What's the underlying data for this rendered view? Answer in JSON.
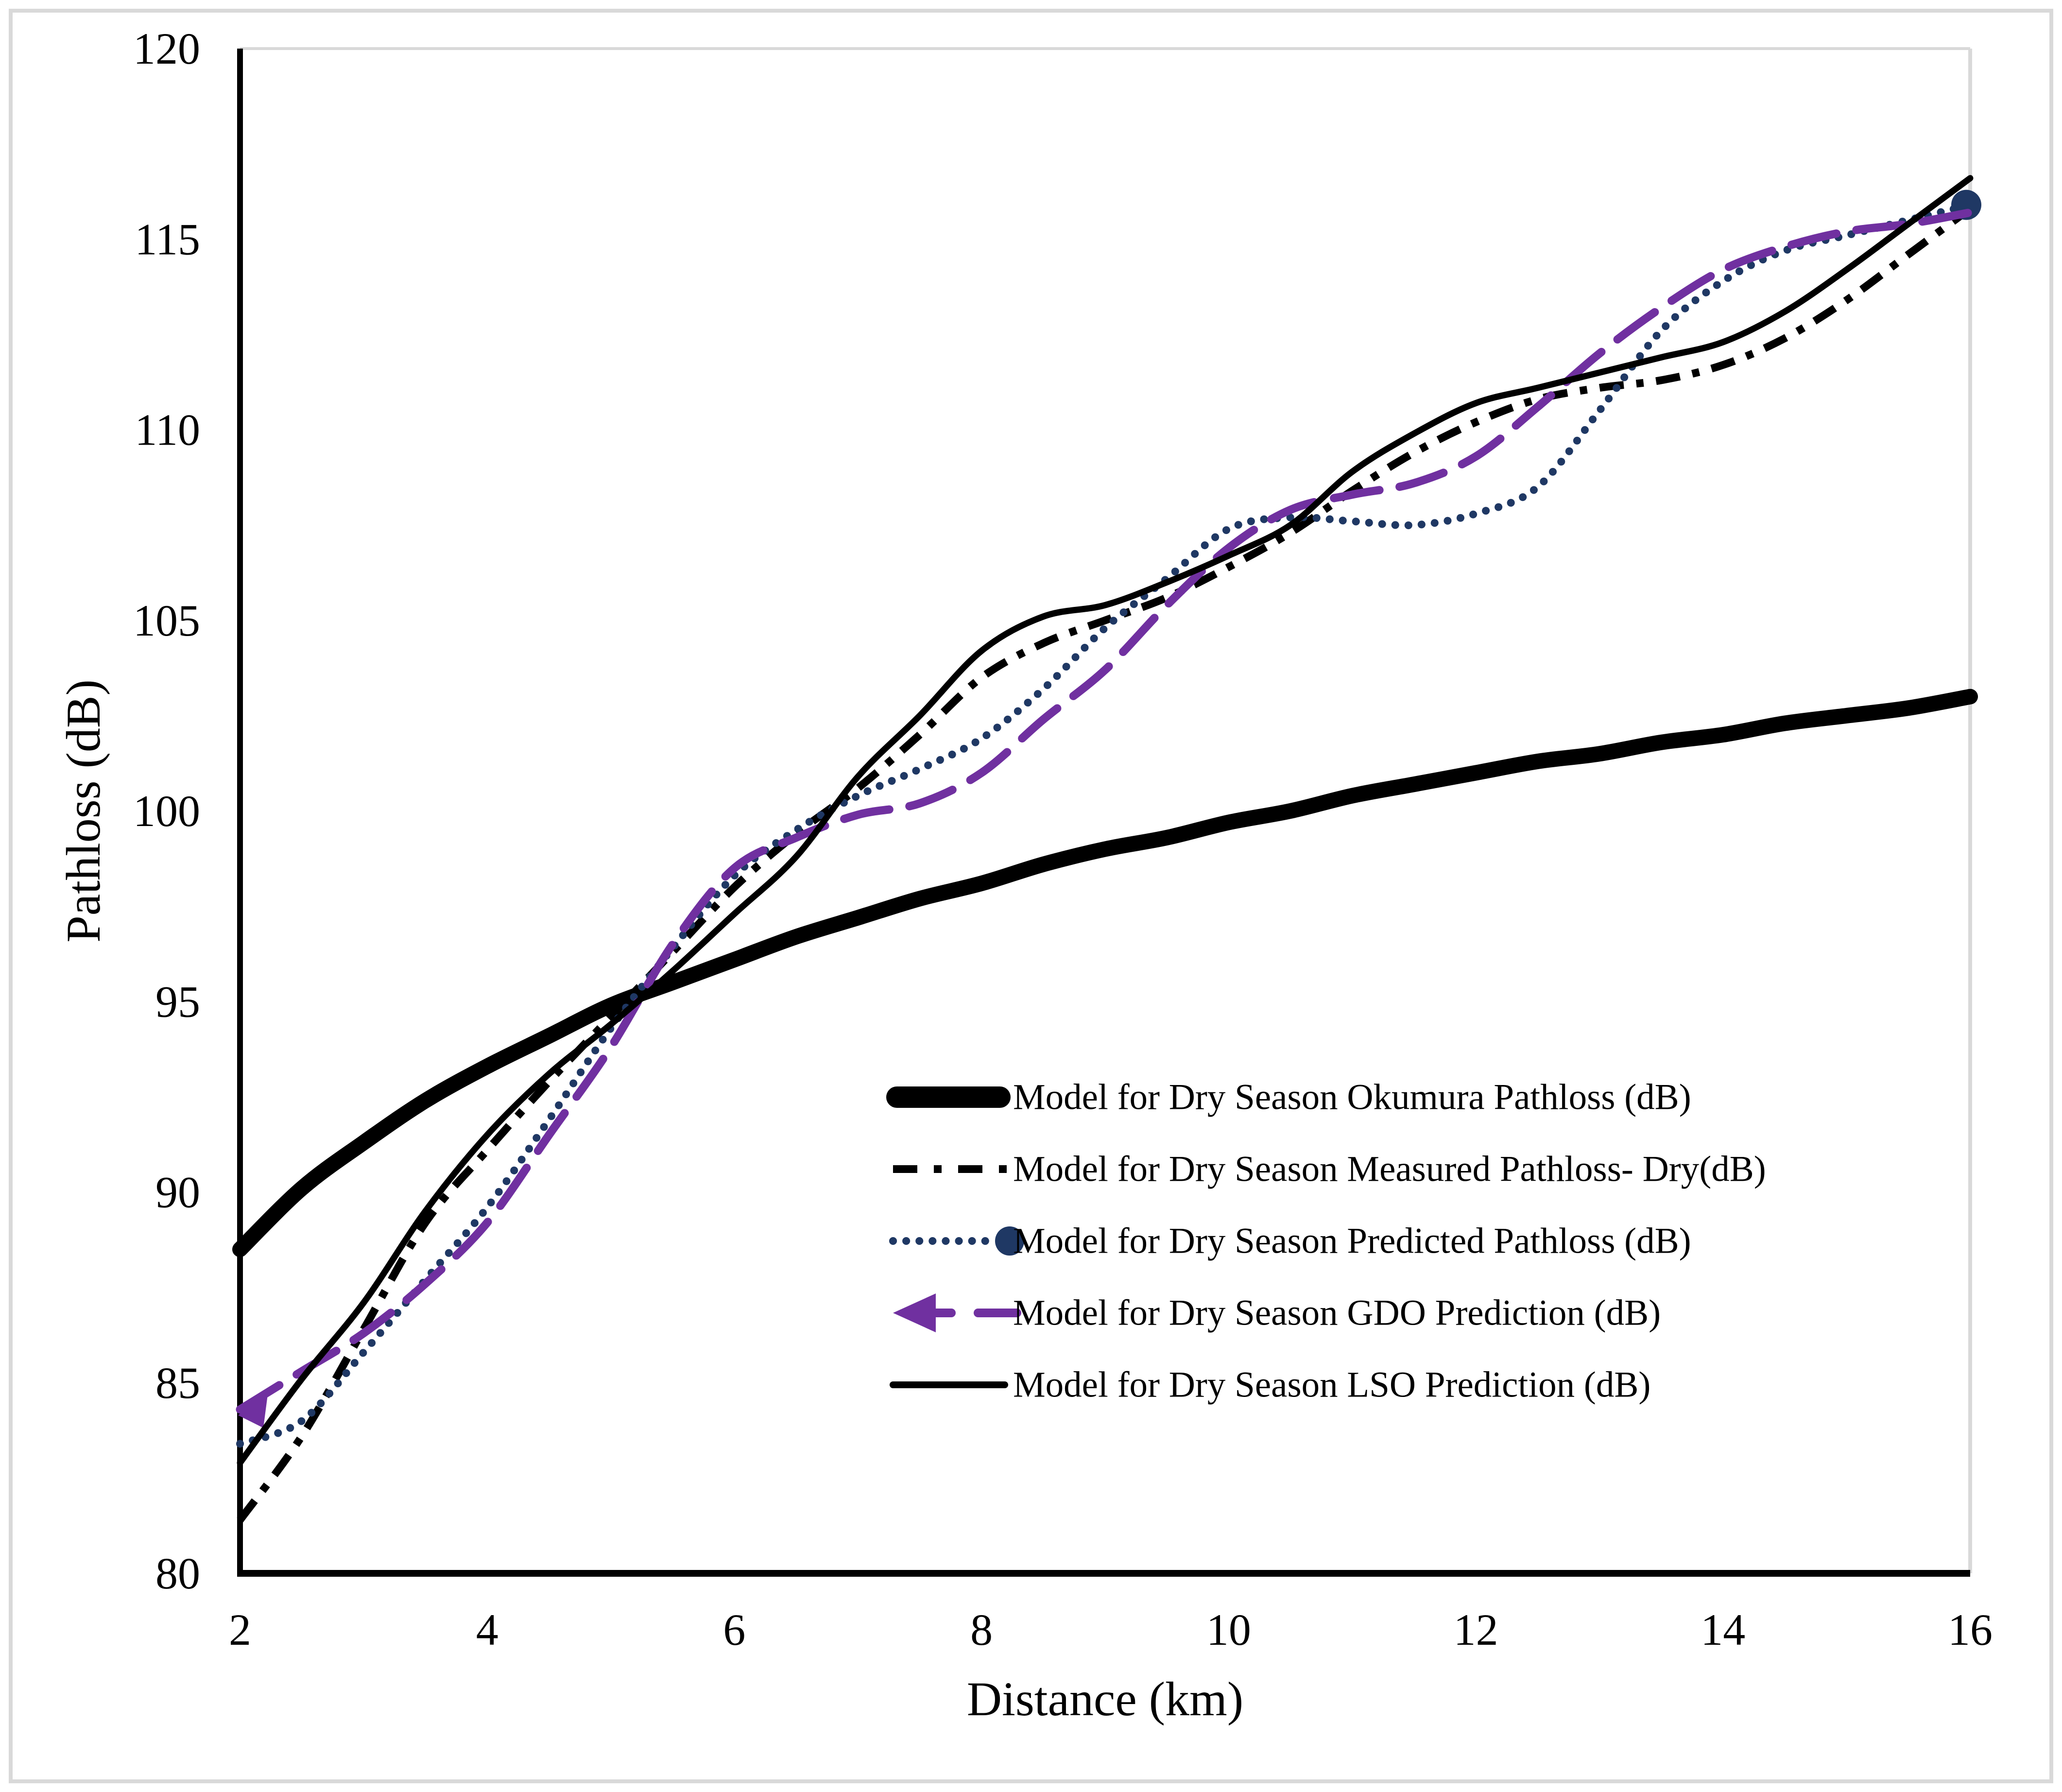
{
  "figure": {
    "background_color": "#ffffff",
    "border_color": "#d9d9d9",
    "axis_color": "#000000",
    "plot_edge_color": "#d9d9d9"
  },
  "y_axis": {
    "label": "Pathloss (dB)",
    "ticks": [
      120,
      115,
      110,
      105,
      100,
      95,
      90,
      85,
      80
    ],
    "min": 80,
    "max": 120
  },
  "x_axis": {
    "label": "Distance (km)",
    "ticks": [
      2,
      4,
      6,
      8,
      10,
      12,
      14,
      16
    ],
    "min": 2,
    "max": 16
  },
  "chart_data": {
    "type": "line",
    "title": "",
    "xlabel": "Distance (km)",
    "ylabel": "Pathloss (dB)",
    "xlim": [
      2,
      16
    ],
    "ylim": [
      80,
      120
    ],
    "grid": "off",
    "legend_position": "inside-lower-right",
    "x": [
      2,
      2.5,
      3,
      3.5,
      4,
      4.5,
      5,
      5.5,
      6,
      6.5,
      7,
      7.5,
      8,
      8.5,
      9,
      9.5,
      10,
      10.5,
      11,
      11.5,
      12,
      12.5,
      13,
      13.5,
      14,
      14.5,
      15,
      15.5,
      16
    ],
    "series": [
      {
        "id": "okumura",
        "name": "Model for Dry Season Okumura Pathloss (dB)",
        "color": "#000000",
        "style": "solid-thick",
        "stroke_width": 32,
        "dash": "",
        "values": [
          88.5,
          90.1,
          91.3,
          92.4,
          93.3,
          94.1,
          94.9,
          95.5,
          96.1,
          96.7,
          97.2,
          97.7,
          98.1,
          98.6,
          99.0,
          99.3,
          99.7,
          100.0,
          100.4,
          100.7,
          101.0,
          101.3,
          101.5,
          101.8,
          102.0,
          102.3,
          102.5,
          102.7,
          103.0
        ]
      },
      {
        "id": "measured",
        "name": "Model for Dry Season Measured Pathloss- Dry(dB)",
        "color": "#000000",
        "style": "dash-dot",
        "stroke_width": 16,
        "dash": "50 26 15 26",
        "values": [
          81.4,
          83.6,
          86.4,
          89.2,
          91.1,
          92.9,
          94.6,
          96.3,
          98.0,
          99.4,
          100.6,
          102.0,
          103.5,
          104.4,
          105.0,
          105.6,
          106.4,
          107.3,
          108.4,
          109.4,
          110.2,
          110.8,
          111.1,
          111.3,
          111.7,
          112.4,
          113.4,
          114.6,
          115.8
        ]
      },
      {
        "id": "predicted",
        "name": "Model for Dry Season Predicted Pathloss (dB)",
        "color": "#1f3864",
        "style": "dotted-marker",
        "stroke_width": 16,
        "dash": "0.1 27",
        "end_marker_radius": 31,
        "values": [
          83.4,
          84.0,
          85.8,
          87.7,
          89.6,
          91.9,
          94.3,
          96.4,
          98.3,
          99.5,
          100.4,
          101.1,
          101.9,
          103.2,
          104.8,
          106.1,
          107.4,
          107.7,
          107.6,
          107.5,
          107.8,
          108.5,
          110.5,
          112.6,
          113.9,
          114.7,
          115.1,
          115.5,
          115.9
        ]
      },
      {
        "id": "gdo",
        "name": "Model for Dry Season GDO Prediction (dB)",
        "color": "#7030a0",
        "style": "dashed-arrow",
        "stroke_width": 17,
        "dash": "95 42",
        "values": [
          84.3,
          85.3,
          86.3,
          87.6,
          89.2,
          91.5,
          93.8,
          96.5,
          98.5,
          99.3,
          99.9,
          100.2,
          101.0,
          102.4,
          103.7,
          105.4,
          106.9,
          107.9,
          108.3,
          108.6,
          109.3,
          110.6,
          112.0,
          113.2,
          114.2,
          114.8,
          115.2,
          115.4,
          115.7
        ]
      },
      {
        "id": "lso",
        "name": "Model for Dry Season LSO Prediction (dB)",
        "color": "#000000",
        "style": "solid-thin",
        "stroke_width": 13,
        "dash": "",
        "values": [
          82.9,
          85.1,
          87.1,
          89.5,
          91.5,
          93.1,
          94.4,
          95.8,
          97.3,
          98.8,
          100.9,
          102.5,
          104.2,
          105.1,
          105.4,
          106.0,
          106.7,
          107.5,
          108.9,
          109.9,
          110.7,
          111.1,
          111.5,
          111.9,
          112.3,
          113.1,
          114.2,
          115.4,
          116.6
        ]
      }
    ]
  }
}
